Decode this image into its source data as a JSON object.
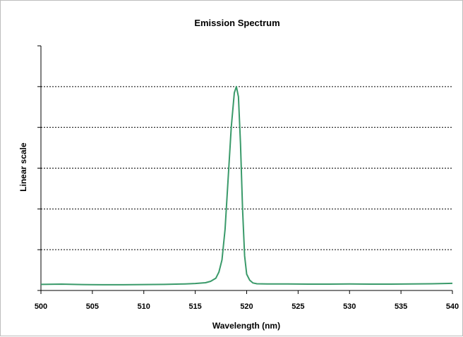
{
  "chart_data": {
    "type": "line",
    "title": "Emission Spectrum",
    "xlabel": "Wavelength (nm)",
    "ylabel": "Linear scale",
    "xlim": [
      500,
      540
    ],
    "ylim": [
      0,
      1.2
    ],
    "x_ticks": [
      "500",
      "505",
      "510",
      "515",
      "520",
      "525",
      "530",
      "535",
      "540"
    ],
    "grid": "horizontal dotted",
    "legend": "none",
    "series": [
      {
        "color": "#3a9a6a",
        "x": [
          500,
          502,
          504,
          506,
          508,
          510,
          512,
          514,
          515,
          516,
          516.5,
          517,
          517.3,
          517.6,
          517.9,
          518.2,
          518.5,
          518.8,
          519.0,
          519.2,
          519.4,
          519.6,
          519.8,
          520.0,
          520.3,
          520.6,
          521,
          522,
          524,
          526,
          528,
          530,
          532,
          534,
          536,
          538,
          540
        ],
        "y": [
          0.03,
          0.031,
          0.029,
          0.028,
          0.028,
          0.029,
          0.03,
          0.032,
          0.034,
          0.038,
          0.045,
          0.06,
          0.09,
          0.15,
          0.3,
          0.55,
          0.8,
          0.97,
          1.0,
          0.95,
          0.72,
          0.4,
          0.17,
          0.08,
          0.05,
          0.037,
          0.033,
          0.032,
          0.032,
          0.031,
          0.031,
          0.032,
          0.031,
          0.031,
          0.032,
          0.033,
          0.035
        ]
      }
    ]
  }
}
